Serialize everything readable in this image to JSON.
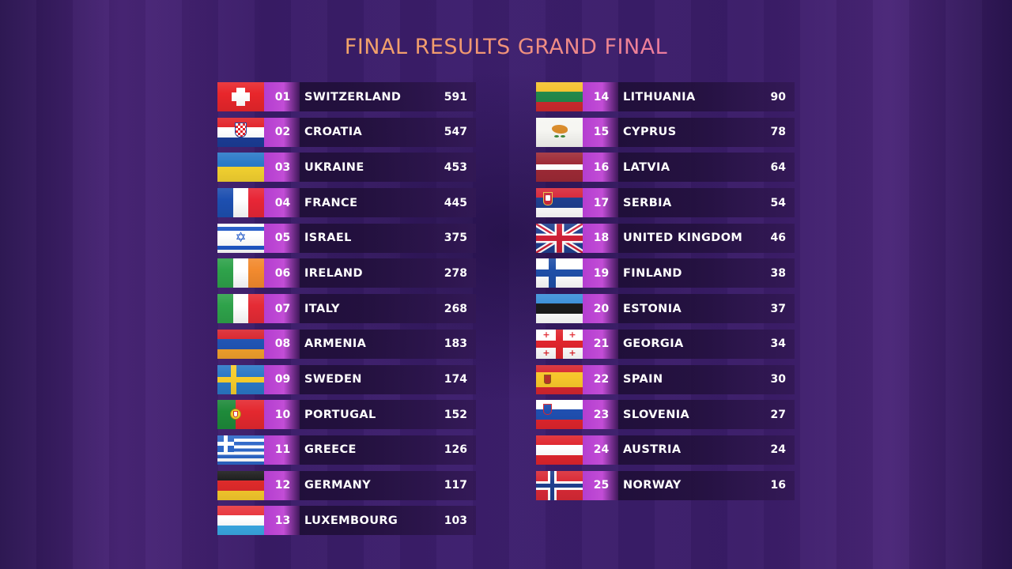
{
  "title": "FINAL RESULTS GRAND FINAL",
  "results": [
    {
      "rank": "01",
      "country": "SWITZERLAND",
      "points": "591",
      "flag": "switzerland-flag-icon"
    },
    {
      "rank": "02",
      "country": "CROATIA",
      "points": "547",
      "flag": "croatia-flag-icon"
    },
    {
      "rank": "03",
      "country": "UKRAINE",
      "points": "453",
      "flag": "ukraine-flag-icon"
    },
    {
      "rank": "04",
      "country": "FRANCE",
      "points": "445",
      "flag": "france-flag-icon"
    },
    {
      "rank": "05",
      "country": "ISRAEL",
      "points": "375",
      "flag": "israel-flag-icon"
    },
    {
      "rank": "06",
      "country": "IRELAND",
      "points": "278",
      "flag": "ireland-flag-icon"
    },
    {
      "rank": "07",
      "country": "ITALY",
      "points": "268",
      "flag": "italy-flag-icon"
    },
    {
      "rank": "08",
      "country": "ARMENIA",
      "points": "183",
      "flag": "armenia-flag-icon"
    },
    {
      "rank": "09",
      "country": "SWEDEN",
      "points": "174",
      "flag": "sweden-flag-icon"
    },
    {
      "rank": "10",
      "country": "PORTUGAL",
      "points": "152",
      "flag": "portugal-flag-icon"
    },
    {
      "rank": "11",
      "country": "GREECE",
      "points": "126",
      "flag": "greece-flag-icon"
    },
    {
      "rank": "12",
      "country": "GERMANY",
      "points": "117",
      "flag": "germany-flag-icon"
    },
    {
      "rank": "13",
      "country": "LUXEMBOURG",
      "points": "103",
      "flag": "luxembourg-flag-icon"
    },
    {
      "rank": "14",
      "country": "LITHUANIA",
      "points": "90",
      "flag": "lithuania-flag-icon"
    },
    {
      "rank": "15",
      "country": "CYPRUS",
      "points": "78",
      "flag": "cyprus-flag-icon"
    },
    {
      "rank": "16",
      "country": "LATVIA",
      "points": "64",
      "flag": "latvia-flag-icon"
    },
    {
      "rank": "17",
      "country": "SERBIA",
      "points": "54",
      "flag": "serbia-flag-icon"
    },
    {
      "rank": "18",
      "country": "UNITED KINGDOM",
      "points": "46",
      "flag": "united-kingdom-flag-icon"
    },
    {
      "rank": "19",
      "country": "FINLAND",
      "points": "38",
      "flag": "finland-flag-icon"
    },
    {
      "rank": "20",
      "country": "ESTONIA",
      "points": "37",
      "flag": "estonia-flag-icon"
    },
    {
      "rank": "21",
      "country": "GEORGIA",
      "points": "34",
      "flag": "georgia-flag-icon"
    },
    {
      "rank": "22",
      "country": "SPAIN",
      "points": "30",
      "flag": "spain-flag-icon"
    },
    {
      "rank": "23",
      "country": "SLOVENIA",
      "points": "27",
      "flag": "slovenia-flag-icon"
    },
    {
      "rank": "24",
      "country": "AUSTRIA",
      "points": "24",
      "flag": "austria-flag-icon"
    },
    {
      "rank": "25",
      "country": "NORWAY",
      "points": "16",
      "flag": "norway-flag-icon"
    }
  ],
  "colors": {
    "title_gradient_start": "#f2c25e",
    "title_gradient_end": "#e45fc6",
    "rank_accent": "#c24dd6",
    "background": "#3d1f6e"
  }
}
